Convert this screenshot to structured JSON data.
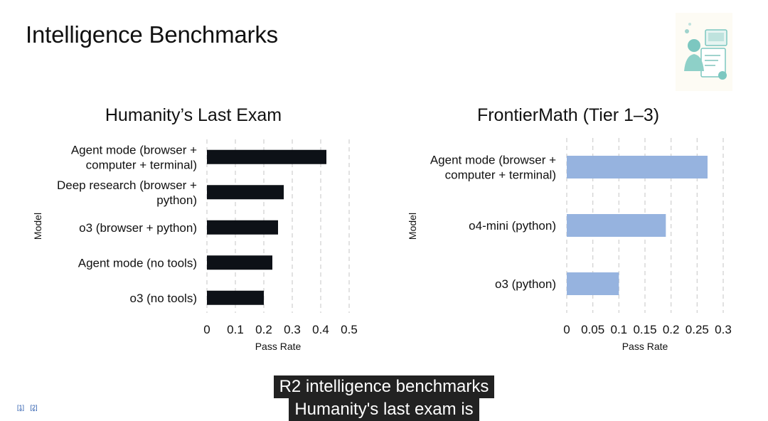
{
  "slide": {
    "title": "Intelligence Benchmarks",
    "refs": [
      "[1]",
      "[2]"
    ]
  },
  "caption": {
    "line1": "R2 intelligence benchmarks",
    "line2": "Humanity's last exam is"
  },
  "illustration": {
    "icon": "person-with-documents-illustration"
  },
  "chart_data": [
    {
      "type": "bar",
      "orientation": "horizontal",
      "title": "Humanity’s Last Exam",
      "xlabel": "Pass Rate",
      "ylabel": "Model",
      "xlim": [
        0,
        0.5
      ],
      "xticks": [
        "0",
        "0.1",
        "0.2",
        "0.3",
        "0.4",
        "0.5"
      ],
      "categories": [
        [
          "Agent mode (browser +",
          "computer + terminal)"
        ],
        [
          "Deep research (browser +",
          "python)"
        ],
        [
          "o3 (browser + python)"
        ],
        [
          "Agent mode (no tools)"
        ],
        [
          "o3 (no tools)"
        ]
      ],
      "values": [
        0.42,
        0.27,
        0.25,
        0.23,
        0.2
      ],
      "color": "#0d1117",
      "grid": "vertical-dashed"
    },
    {
      "type": "bar",
      "orientation": "horizontal",
      "title": "FrontierMath (Tier 1–3)",
      "xlabel": "Pass Rate",
      "ylabel": "Model",
      "xlim": [
        0,
        0.3
      ],
      "xticks": [
        "0",
        "0.05",
        "0.1",
        "0.15",
        "0.2",
        "0.25",
        "0.3"
      ],
      "categories": [
        [
          "Agent mode (browser +",
          "computer + terminal)"
        ],
        [
          "o4-mini (python)"
        ],
        [
          "o3 (python)"
        ]
      ],
      "values": [
        0.27,
        0.19,
        0.1
      ],
      "color": "#96b3df",
      "grid": "vertical-dashed"
    }
  ]
}
